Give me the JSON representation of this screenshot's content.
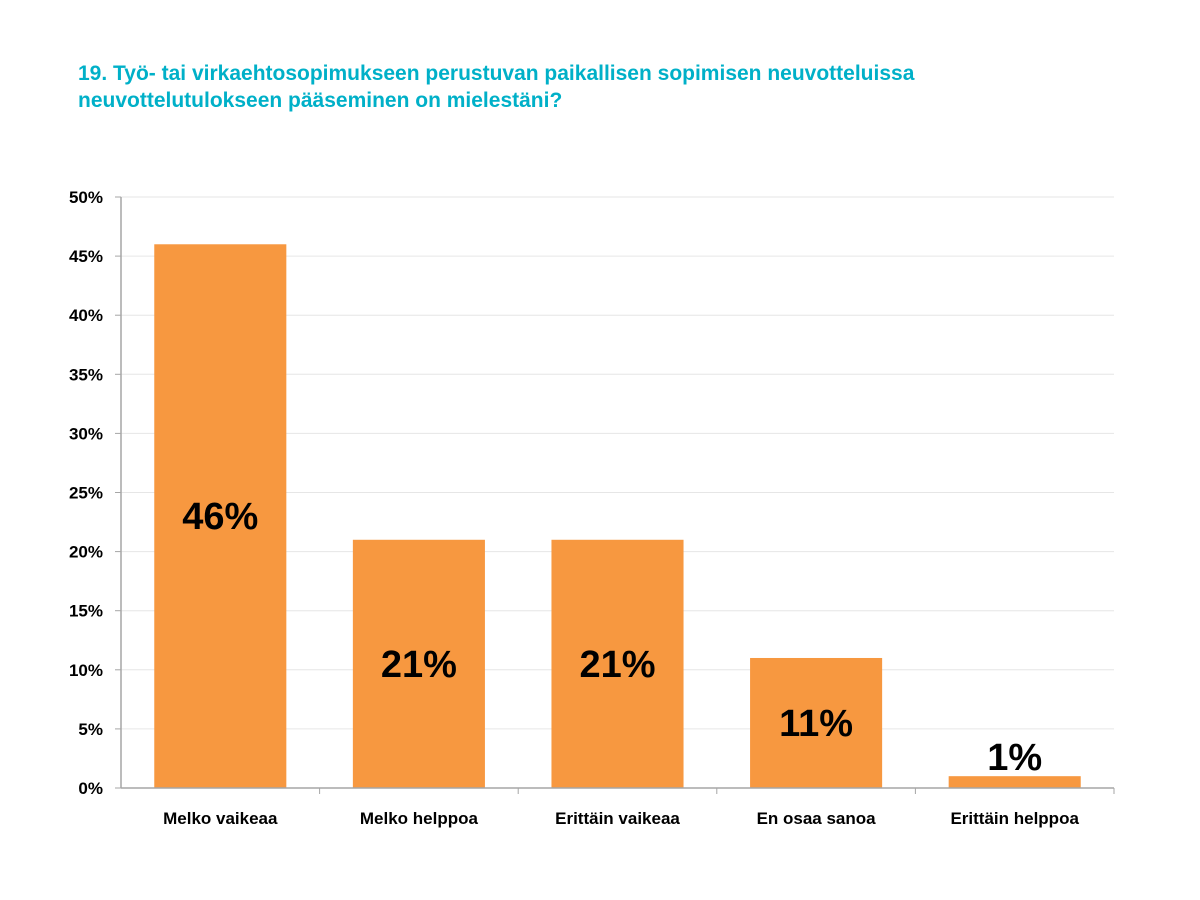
{
  "chart_data": {
    "type": "bar",
    "title": "19. Työ- tai virkaehtosopimukseen perustuvan paikallisen sopimisen neuvotteluissa neuvottelutulokseen pääseminen on mielestäni?",
    "categories": [
      "Melko vaikeaa",
      "Melko helppoa",
      "Erittäin vaikeaa",
      "En osaa sanoa",
      "Erittäin helppoa"
    ],
    "values": [
      46,
      21,
      21,
      11,
      1
    ],
    "data_labels": [
      "46%",
      "21%",
      "21%",
      "11%",
      "1%"
    ],
    "yticks": [
      "0%",
      "5%",
      "10%",
      "15%",
      "20%",
      "25%",
      "30%",
      "35%",
      "40%",
      "45%",
      "50%"
    ],
    "ylim": [
      0,
      50
    ],
    "grid": true,
    "legend": "none",
    "colors": {
      "bar": "#F79840",
      "title": "#00B0C8",
      "grid": "#E6E6E6",
      "axis": "#A6A6A6"
    }
  }
}
